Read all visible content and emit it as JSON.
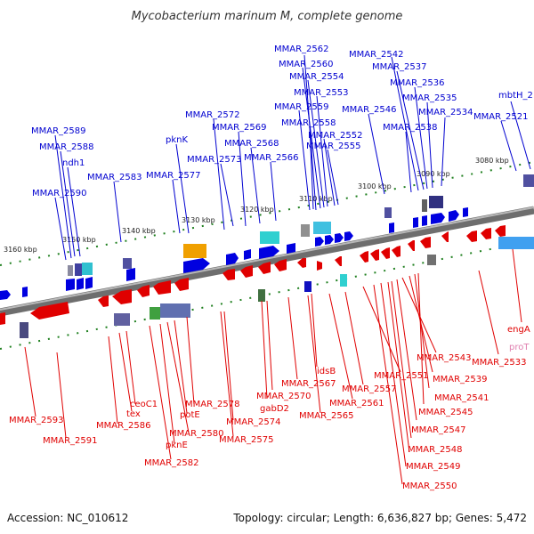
{
  "title": "Mycobacterium marinum M, complete genome",
  "footer": {
    "accession": "Accession: NC_010612",
    "summary": "Topology: circular; Length: 6,636,827 bp; Genes: 5,472"
  },
  "colors": {
    "forward": "#0000e0",
    "reverse": "#e00000",
    "pseudo": "#e070a0",
    "backbone": "#888888",
    "ticks": "#208020"
  },
  "kbp_labels": [
    "3160 kbp",
    "3150 kbp",
    "3140 kbp",
    "3130 kbp",
    "3120 kbp",
    "3110 kbp",
    "3100 kbp",
    "3090 kbp",
    "3080 kbp"
  ],
  "top_labels": [
    "MMAR_2562",
    "MMAR_2560",
    "MMAR_2554",
    "MMAR_2553",
    "MMAR_2559",
    "MMAR_2558",
    "MMAR_2552",
    "MMAR_2555",
    "MMAR_2542",
    "MMAR_2537",
    "MMAR_2536",
    "MMAR_2535",
    "MMAR_2534",
    "MMAR_2546",
    "MMAR_2538",
    "mbtH_2",
    "MMAR_2521",
    "MMAR_2572",
    "MMAR_2569",
    "MMAR_2568",
    "MMAR_2573",
    "MMAR_2566",
    "pknK",
    "MMAR_2577",
    "MMAR_2583",
    "MMAR_2589",
    "MMAR_2588",
    "ndh1",
    "MMAR_2590"
  ],
  "bottom_labels": [
    "engA",
    "proT",
    "MMAR_2533",
    "MMAR_2543",
    "MMAR_2539",
    "MMAR_2541",
    "MMAR_2545",
    "MMAR_2547",
    "MMAR_2548",
    "MMAR_2549",
    "MMAR_2550",
    "MMAR_2551",
    "MMAR_2557",
    "MMAR_2561",
    "MMAR_2565",
    "idsB",
    "MMAR_2567",
    "gabD2",
    "MMAR_2570",
    "MMAR_2574",
    "MMAR_2575",
    "MMAR_2578",
    "potE",
    "MMAR_2580",
    "pknE",
    "MMAR_2582",
    "ceoC1",
    "tex",
    "MMAR_2586",
    "MMAR_2593",
    "MMAR_2591"
  ]
}
